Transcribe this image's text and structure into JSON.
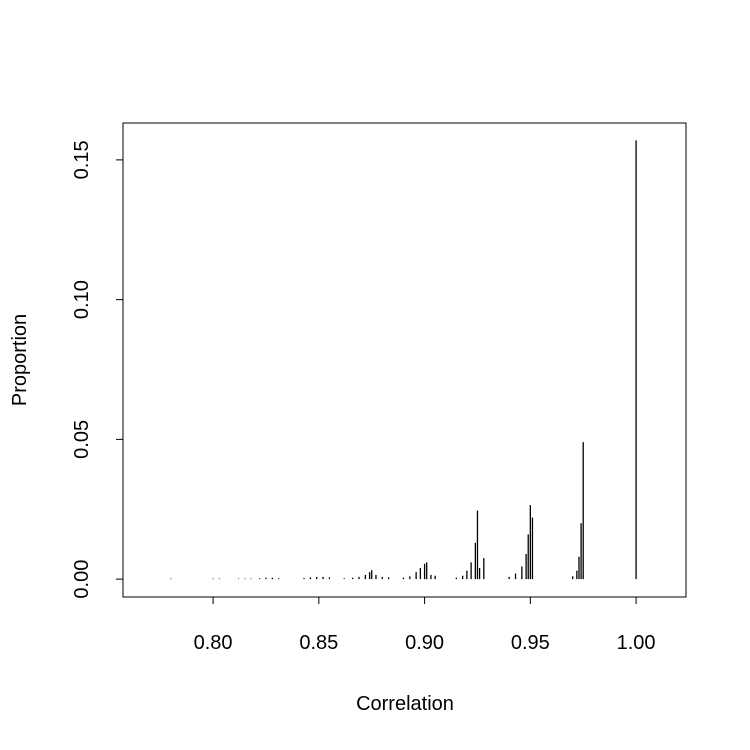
{
  "chart_data": {
    "type": "spike",
    "x_label": "Correlation",
    "y_label": "Proportion",
    "x": [
      0.78,
      0.8,
      0.803,
      0.812,
      0.815,
      0.818,
      0.822,
      0.825,
      0.828,
      0.831,
      0.843,
      0.846,
      0.849,
      0.852,
      0.855,
      0.862,
      0.866,
      0.869,
      0.872,
      0.874,
      0.875,
      0.877,
      0.88,
      0.883,
      0.89,
      0.893,
      0.896,
      0.898,
      0.9,
      0.901,
      0.903,
      0.905,
      0.915,
      0.918,
      0.92,
      0.922,
      0.924,
      0.925,
      0.926,
      0.928,
      0.94,
      0.943,
      0.946,
      0.948,
      0.949,
      0.95,
      0.951,
      0.97,
      0.972,
      0.973,
      0.974,
      0.975,
      1.0
    ],
    "values": [
      0.0002,
      0.0002,
      0.0002,
      0.0002,
      0.0002,
      0.0002,
      0.0003,
      0.0005,
      0.0005,
      0.0003,
      0.0004,
      0.0006,
      0.0008,
      0.0008,
      0.0006,
      0.0003,
      0.0005,
      0.0008,
      0.0015,
      0.0025,
      0.0032,
      0.0015,
      0.0008,
      0.0006,
      0.0005,
      0.001,
      0.0025,
      0.004,
      0.0055,
      0.006,
      0.0015,
      0.0012,
      0.0005,
      0.0012,
      0.003,
      0.006,
      0.013,
      0.0245,
      0.004,
      0.0075,
      0.0008,
      0.002,
      0.0045,
      0.009,
      0.016,
      0.0265,
      0.022,
      0.001,
      0.003,
      0.008,
      0.02,
      0.049,
      0.157
    ],
    "color": "#000000",
    "xlim": [
      0.7574,
      1.0236
    ],
    "ylim": [
      -0.0064,
      0.1632
    ],
    "xticks": [
      {
        "value": 0.8,
        "label": "0.80"
      },
      {
        "value": 0.85,
        "label": "0.85"
      },
      {
        "value": 0.9,
        "label": "0.90"
      },
      {
        "value": 0.95,
        "label": "0.95"
      },
      {
        "value": 1.0,
        "label": "1.00"
      }
    ],
    "yticks": [
      {
        "value": 0.0,
        "label": "0.00"
      },
      {
        "value": 0.05,
        "label": "0.05"
      },
      {
        "value": 0.1,
        "label": "0.10"
      },
      {
        "value": 0.15,
        "label": "0.15"
      }
    ]
  }
}
